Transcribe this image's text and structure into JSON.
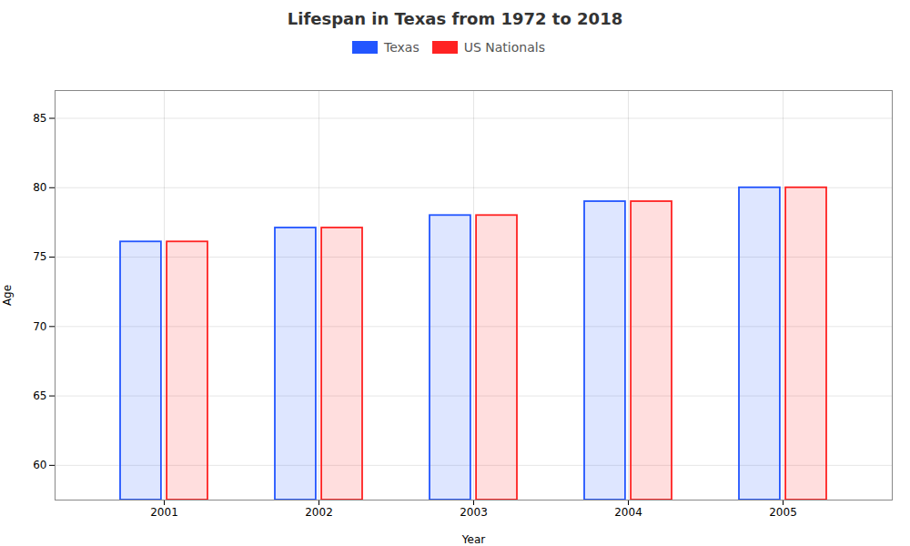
{
  "chart_data": {
    "type": "bar",
    "title": "Lifespan in Texas from 1972 to 2018",
    "xlabel": "Year",
    "ylabel": "Age",
    "categories": [
      "2001",
      "2002",
      "2003",
      "2004",
      "2005"
    ],
    "series": [
      {
        "name": "Texas",
        "color": "#2255ff",
        "values": [
          76.1,
          77.1,
          78.0,
          79.0,
          80.0
        ]
      },
      {
        "name": "US Nationals",
        "color": "#ff2222",
        "values": [
          76.1,
          77.1,
          78.0,
          79.0,
          80.0
        ]
      }
    ],
    "ylim": [
      57.5,
      87
    ],
    "yticks": [
      60,
      65,
      70,
      75,
      80,
      85
    ],
    "grid": true,
    "legend": "top"
  }
}
